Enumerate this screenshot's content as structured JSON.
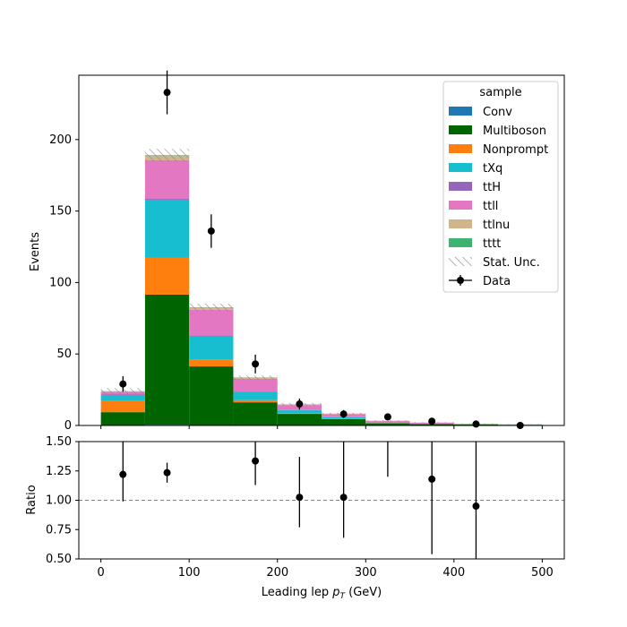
{
  "chart_data": {
    "type": "bar",
    "stacked": true,
    "bin_edges": [
      0,
      50,
      100,
      150,
      200,
      250,
      300,
      350,
      400,
      450,
      500
    ],
    "xlim": [
      -25,
      525
    ],
    "main": {
      "ylabel": "Events",
      "ylim": [
        0,
        245
      ],
      "yticks": [
        0,
        50,
        100,
        150,
        200
      ],
      "series": [
        {
          "name": "Conv",
          "color": "#1f77b4",
          "values": [
            0.3,
            0.5,
            0.3,
            0.2,
            0.1,
            0.05,
            0.02,
            0.01,
            0.01,
            0.01
          ]
        },
        {
          "name": "Multiboson",
          "color": "#006400",
          "values": [
            9,
            91,
            41,
            16,
            8,
            4.5,
            1.5,
            1,
            0.6,
            0.4
          ]
        },
        {
          "name": "Nonprompt",
          "color": "#ff7f0e",
          "values": [
            8,
            26,
            5,
            1.5,
            0.5,
            0.3,
            0.2,
            0.1,
            0.05,
            0.05
          ]
        },
        {
          "name": "tXq",
          "color": "#17becf",
          "values": [
            4,
            40,
            16,
            5.5,
            2,
            0.8,
            0.4,
            0.2,
            0.1,
            0.1
          ]
        },
        {
          "name": "ttH",
          "color": "#9467bd",
          "values": [
            0.3,
            1,
            0.6,
            0.4,
            0.2,
            0.1,
            0.05,
            0.05,
            0.03,
            0.02
          ]
        },
        {
          "name": "ttll",
          "color": "#e377c2",
          "values": [
            2,
            27,
            18,
            9,
            3.5,
            2.2,
            0.9,
            0.6,
            0.4,
            0.2
          ]
        },
        {
          "name": "ttlnu",
          "color": "#d2b48c",
          "values": [
            0.3,
            3,
            1.2,
            0.6,
            0.3,
            0.2,
            0.1,
            0.05,
            0.05,
            0.02
          ]
        },
        {
          "name": "tttt",
          "color": "#3cb371",
          "values": [
            0.1,
            0.5,
            0.4,
            0.3,
            0.2,
            0.1,
            0.1,
            0.05,
            0.05,
            0.03
          ]
        }
      ],
      "stat_unc": [
        2.2,
        4.5,
        2.6,
        1.5,
        0.9,
        0.6,
        0.4,
        0.3,
        0.2,
        0.15
      ],
      "data": {
        "name": "Data",
        "x": [
          25,
          75,
          125,
          175,
          225,
          275,
          325,
          375,
          425,
          475
        ],
        "y": [
          29,
          233,
          136,
          43,
          15,
          8,
          6,
          3,
          1,
          0
        ],
        "yerr": [
          5.4,
          15.3,
          11.7,
          6.6,
          3.9,
          2.8,
          2.4,
          1.7,
          1,
          0
        ]
      }
    },
    "ratio": {
      "ylabel": "Ratio",
      "ylim": [
        0.5,
        1.5
      ],
      "yticks": [
        "0.50",
        "0.75",
        "1.00",
        "1.25",
        "1.50"
      ],
      "ytick_values": [
        0.5,
        0.75,
        1.0,
        1.25,
        1.5
      ],
      "reference_line": 1.0,
      "points": [
        {
          "x": 25,
          "y": 1.22,
          "lo": 0.99,
          "hi": 1.5
        },
        {
          "x": 75,
          "y": 1.235,
          "lo": 1.15,
          "hi": 1.32
        },
        {
          "x": 175,
          "y": 1.335,
          "lo": 1.13,
          "hi": 1.5
        },
        {
          "x": 225,
          "y": 1.025,
          "lo": 0.77,
          "hi": 1.37
        },
        {
          "x": 275,
          "y": 1.025,
          "lo": 0.68,
          "hi": 1.5
        },
        {
          "x": 325,
          "y": null,
          "lo": 1.2,
          "hi": 1.5
        },
        {
          "x": 375,
          "y": 1.18,
          "lo": 0.54,
          "hi": 1.5
        },
        {
          "x": 425,
          "y": 0.95,
          "lo": 0.5,
          "hi": 1.5
        }
      ]
    },
    "xticks": [
      0,
      100,
      200,
      300,
      400,
      500
    ],
    "xlabel": "Leading lep",
    "xlabel_math": "p",
    "xlabel_sub": "T",
    "xlabel_unit": " (GeV)",
    "legend": {
      "title": "sample",
      "position": "top-right",
      "stat_unc_label": "Stat. Unc.",
      "data_label": "Data"
    }
  }
}
